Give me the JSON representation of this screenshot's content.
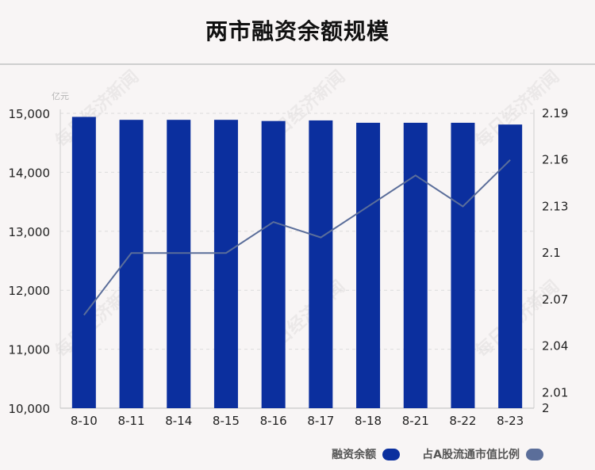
{
  "title": "两市融资余额规模",
  "watermark": "每日经济新闻",
  "chart_data": {
    "type": "bar",
    "categories": [
      "8-10",
      "8-11",
      "8-14",
      "8-15",
      "8-16",
      "8-17",
      "8-18",
      "8-21",
      "8-22",
      "8-23"
    ],
    "series": [
      {
        "name": "融资余额",
        "type": "bar",
        "axis": "left",
        "color": "#0b2f9e",
        "values": [
          14940,
          14890,
          14890,
          14890,
          14870,
          14880,
          14840,
          14840,
          14840,
          14810
        ]
      },
      {
        "name": "占A股流通市值比例",
        "type": "line",
        "axis": "right",
        "color": "#5b6e9a",
        "values": [
          2.06,
          2.1,
          2.1,
          2.1,
          2.12,
          2.11,
          2.13,
          2.15,
          2.13,
          2.16
        ]
      }
    ],
    "y_left": {
      "unit": "亿元",
      "ylim": [
        10000,
        15000
      ],
      "ticks": [
        "10,000",
        "11,000",
        "12,000",
        "13,000",
        "14,000",
        "15,000"
      ]
    },
    "y_right": {
      "ylim": [
        2.0,
        2.19
      ],
      "ticks": [
        {
          "value": 2.0,
          "label": "2"
        },
        {
          "value": 2.01,
          "label": "2.01"
        },
        {
          "value": 2.04,
          "label": "2.04"
        },
        {
          "value": 2.07,
          "label": "2.07"
        },
        {
          "value": 2.1,
          "label": "2.1"
        },
        {
          "value": 2.13,
          "label": "2.13"
        },
        {
          "value": 2.16,
          "label": "2.16"
        },
        {
          "value": 2.19,
          "label": "2.19"
        }
      ]
    },
    "grid": true,
    "legend": "bottom-right"
  }
}
